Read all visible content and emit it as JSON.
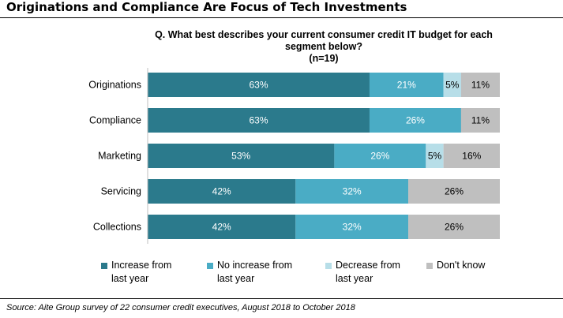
{
  "page_title": "Originations and Compliance Are Focus of Tech Investments",
  "question": {
    "line1": "Q. What best describes your current consumer credit IT budget for each",
    "line2": "segment below?",
    "line3": "(n=19)"
  },
  "source": "Source: Aite Group survey of 22 consumer credit executives, August 2018 to October 2018",
  "chart_data": {
    "type": "bar",
    "orientation": "horizontal",
    "stacked": true,
    "normalized": true,
    "categories": [
      "Originations",
      "Compliance",
      "Marketing",
      "Servicing",
      "Collections"
    ],
    "series": [
      {
        "name": "Increase from last year",
        "legend_lines": [
          "Increase from",
          "last year"
        ],
        "color": "#2b7a8c",
        "values": [
          63,
          63,
          53,
          42,
          42
        ]
      },
      {
        "name": "No increase from last year",
        "legend_lines": [
          "No increase from",
          "last year"
        ],
        "color": "#4aacc5",
        "values": [
          21,
          26,
          26,
          32,
          32
        ]
      },
      {
        "name": "Decrease from last year",
        "legend_lines": [
          "Decrease from",
          "last year"
        ],
        "color": "#b7dee8",
        "values": [
          5,
          0,
          5,
          0,
          0
        ]
      },
      {
        "name": "Don't know",
        "legend_lines": [
          "Don't know"
        ],
        "color": "#bfbfbf",
        "values": [
          11,
          11,
          16,
          26,
          26
        ]
      }
    ],
    "value_suffix": "%",
    "xlim": [
      0,
      100
    ],
    "grid": false,
    "legend_position": "bottom"
  }
}
